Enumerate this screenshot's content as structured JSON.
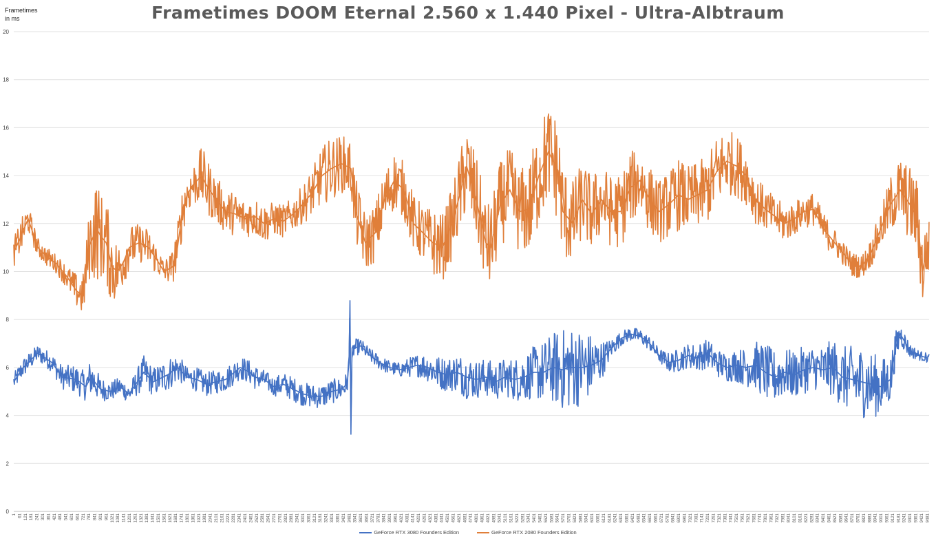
{
  "chart_data": {
    "type": "line",
    "title": "Frametimes DOOM Eternal 2.560 x 1.440 Pixel - Ultra-Albtraum",
    "ylabel_lines": [
      "Frametimes",
      "in ms"
    ],
    "xlabel": "",
    "ylim": [
      0,
      20
    ],
    "xlim": [
      1,
      9500
    ],
    "y_ticks": [
      0,
      2,
      4,
      6,
      8,
      10,
      12,
      14,
      16,
      18,
      20
    ],
    "x_ticks": [
      1,
      61,
      121,
      181,
      241,
      301,
      361,
      421,
      481,
      541,
      601,
      661,
      721,
      781,
      841,
      901,
      961,
      1021,
      1081,
      1141,
      1201,
      1261,
      1321,
      1381,
      1441,
      1501,
      1561,
      1621,
      1681,
      1741,
      1801,
      1861,
      1921,
      1981,
      2041,
      2101,
      2161,
      2221,
      2281,
      2341,
      2401,
      2461,
      2521,
      2581,
      2641,
      2701,
      2761,
      2821,
      2881,
      2941,
      3001,
      3061,
      3121,
      3181,
      3241,
      3301,
      3361,
      3421,
      3481,
      3541,
      3601,
      3661,
      3721,
      3781,
      3841,
      3901,
      3961,
      4021,
      4081,
      4141,
      4201,
      4261,
      4321,
      4381,
      4441,
      4501,
      4561,
      4621,
      4681,
      4741,
      4801,
      4861,
      4921,
      4981,
      5041,
      5101,
      5161,
      5221,
      5281,
      5341,
      5401,
      5461,
      5521,
      5581,
      5641,
      5701,
      5761,
      5821,
      5881,
      5941,
      6001,
      6061,
      6121,
      6181,
      6241,
      6301,
      6361,
      6421,
      6481,
      6541,
      6601,
      6661,
      6721,
      6781,
      6841,
      6901,
      6961,
      7021,
      7081,
      7141,
      7201,
      7261,
      7321,
      7381,
      7441,
      7501,
      7561,
      7621,
      7681,
      7741,
      7801,
      7861,
      7921,
      7981,
      8041,
      8101,
      8161,
      8221,
      8281,
      8341,
      8401,
      8461,
      8521,
      8581,
      8641,
      8701,
      8761,
      8821,
      8881,
      8941,
      9001,
      9061,
      9121,
      9181,
      9241,
      9301,
      9361,
      9421,
      9481
    ],
    "grid": true,
    "legend_position": "bottom",
    "series": [
      {
        "name": "GeForce RTX 3080 Founders Edition",
        "color": "#4472c4",
        "x": [
          1,
          100,
          250,
          400,
          500,
          650,
          750,
          800,
          900,
          1000,
          1100,
          1200,
          1350,
          1450,
          1600,
          1700,
          1800,
          1900,
          2000,
          2100,
          2200,
          2350,
          2450,
          2500,
          2600,
          2700,
          2800,
          2900,
          3000,
          3100,
          3200,
          3300,
          3400,
          3460,
          3480,
          3490,
          3500,
          3510,
          3530,
          3600,
          3700,
          3800,
          3900,
          4000,
          4100,
          4200,
          4300,
          4400,
          4500,
          4600,
          4700,
          4800,
          4900,
          5000,
          5100,
          5200,
          5300,
          5400,
          5500,
          5600,
          5700,
          5750,
          5800,
          5900,
          6000,
          6100,
          6200,
          6300,
          6400,
          6500,
          6600,
          6700,
          6800,
          6900,
          7000,
          7100,
          7200,
          7300,
          7400,
          7500,
          7600,
          7700,
          7800,
          7900,
          8000,
          8100,
          8200,
          8300,
          8400,
          8500,
          8600,
          8700,
          8800,
          8900,
          9000,
          9100,
          9150,
          9200,
          9300,
          9400,
          9480
        ],
        "values": [
          5.4,
          6.0,
          6.6,
          6.2,
          5.6,
          5.5,
          5.2,
          5.6,
          5.1,
          5.0,
          5.2,
          4.9,
          5.8,
          5.4,
          5.7,
          6.0,
          5.6,
          5.5,
          5.3,
          5.4,
          5.5,
          6.0,
          5.8,
          5.6,
          5.5,
          5.2,
          5.3,
          5.1,
          4.9,
          4.8,
          4.8,
          5.0,
          5.1,
          5.3,
          6.2,
          8.8,
          3.2,
          6.4,
          6.8,
          6.9,
          6.5,
          6.2,
          6.0,
          5.9,
          6.0,
          6.1,
          6.0,
          5.8,
          5.7,
          5.8,
          5.6,
          5.5,
          5.6,
          5.4,
          5.6,
          5.5,
          5.6,
          5.8,
          5.8,
          6.0,
          5.9,
          6.0,
          6.0,
          6.0,
          6.1,
          6.3,
          6.8,
          7.2,
          7.4,
          7.3,
          7.0,
          6.5,
          6.2,
          6.3,
          6.5,
          6.4,
          6.6,
          6.2,
          6.0,
          6.1,
          6.0,
          6.1,
          5.8,
          5.6,
          5.8,
          5.7,
          5.9,
          6.0,
          5.9,
          6.0,
          5.6,
          5.5,
          5.4,
          5.3,
          5.2,
          5.5,
          6.8,
          7.4,
          6.7,
          6.5,
          6.4
        ],
        "spread": [
          0.35,
          0.4,
          0.35,
          0.4,
          0.5,
          0.6,
          0.6,
          0.8,
          0.5,
          0.4,
          0.4,
          0.4,
          0.7,
          0.6,
          0.7,
          0.6,
          0.4,
          0.5,
          0.5,
          0.5,
          0.5,
          0.5,
          0.5,
          0.5,
          0.4,
          0.4,
          0.5,
          0.5,
          0.5,
          0.5,
          0.5,
          0.5,
          0.5,
          0.5,
          0.3,
          0.0,
          0.0,
          0.4,
          0.4,
          0.3,
          0.3,
          0.3,
          0.3,
          0.3,
          0.4,
          0.5,
          0.6,
          0.7,
          0.7,
          0.8,
          0.9,
          0.8,
          0.8,
          0.8,
          0.8,
          0.9,
          1.0,
          1.1,
          1.3,
          1.5,
          1.7,
          1.8,
          1.7,
          1.6,
          1.3,
          0.8,
          0.4,
          0.3,
          0.3,
          0.3,
          0.3,
          0.3,
          0.4,
          0.5,
          0.5,
          0.6,
          0.6,
          0.6,
          0.6,
          0.7,
          0.8,
          1.0,
          1.2,
          1.1,
          1.0,
          1.0,
          1.0,
          0.9,
          1.0,
          1.2,
          1.3,
          1.4,
          1.5,
          1.4,
          1.2,
          1.0,
          0.7,
          0.5,
          0.3,
          0.2,
          0.2
        ]
      },
      {
        "name": "GeForce RTX 2080 Founders Edition",
        "color": "#e07f3a",
        "x": [
          1,
          80,
          150,
          250,
          350,
          450,
          550,
          650,
          720,
          780,
          860,
          900,
          960,
          1020,
          1080,
          1140,
          1200,
          1300,
          1400,
          1500,
          1560,
          1650,
          1700,
          1750,
          1800,
          1860,
          1950,
          2000,
          2100,
          2200,
          2300,
          2400,
          2500,
          2600,
          2700,
          2800,
          2900,
          3000,
          3100,
          3200,
          3300,
          3400,
          3500,
          3550,
          3650,
          3750,
          3850,
          3950,
          4050,
          4150,
          4250,
          4350,
          4450,
          4550,
          4650,
          4700,
          4800,
          4900,
          4950,
          5050,
          5150,
          5250,
          5350,
          5450,
          5550,
          5650,
          5700,
          5800,
          5900,
          6000,
          6100,
          6200,
          6300,
          6400,
          6500,
          6600,
          6700,
          6800,
          6900,
          7000,
          7100,
          7200,
          7300,
          7400,
          7500,
          7600,
          7700,
          7800,
          7900,
          8000,
          8100,
          8200,
          8300,
          8400,
          8500,
          8600,
          8700,
          8800,
          8900,
          9000,
          9100,
          9200,
          9300,
          9380,
          9430,
          9480
        ],
        "values": [
          10.8,
          11.5,
          12.2,
          11.0,
          10.6,
          10.3,
          9.8,
          9.2,
          9.0,
          11.0,
          11.8,
          11.5,
          11.2,
          10.2,
          10.0,
          10.4,
          11.0,
          11.2,
          11.0,
          10.4,
          10.0,
          10.2,
          11.0,
          12.5,
          13.2,
          13.6,
          14.0,
          13.6,
          13.0,
          12.5,
          12.4,
          12.2,
          12.3,
          12.0,
          12.2,
          12.1,
          12.4,
          12.8,
          13.3,
          14.0,
          14.3,
          14.5,
          14.3,
          12.5,
          11.2,
          11.6,
          13.0,
          13.8,
          13.4,
          12.0,
          11.6,
          11.2,
          11.0,
          12.0,
          13.5,
          14.4,
          13.0,
          11.2,
          11.0,
          12.8,
          13.4,
          12.5,
          12.6,
          14.0,
          15.0,
          14.2,
          12.5,
          12.0,
          13.0,
          12.4,
          13.0,
          12.5,
          12.5,
          13.5,
          13.8,
          13.0,
          12.5,
          12.8,
          13.2,
          13.0,
          13.2,
          13.4,
          14.2,
          14.6,
          14.4,
          14.0,
          13.0,
          12.6,
          12.3,
          12.0,
          12.2,
          12.5,
          12.6,
          11.8,
          11.3,
          10.8,
          10.3,
          10.2,
          10.8,
          11.8,
          12.8,
          13.4,
          12.8,
          12.2,
          10.0,
          11.0
        ],
        "spread": [
          0.6,
          0.7,
          0.6,
          0.4,
          0.4,
          0.4,
          0.5,
          0.7,
          0.9,
          1.4,
          2.2,
          1.8,
          1.8,
          1.6,
          1.2,
          1.0,
          0.9,
          0.8,
          0.8,
          0.6,
          0.5,
          0.7,
          1.0,
          1.0,
          0.8,
          0.9,
          1.2,
          1.2,
          1.0,
          0.9,
          0.9,
          0.8,
          0.8,
          0.8,
          0.7,
          0.7,
          0.7,
          0.8,
          1.0,
          1.2,
          1.3,
          1.2,
          1.2,
          1.4,
          1.2,
          1.2,
          1.2,
          1.2,
          1.2,
          1.2,
          1.2,
          1.4,
          1.4,
          1.5,
          1.8,
          1.8,
          1.8,
          1.8,
          1.8,
          1.8,
          1.8,
          1.8,
          2.0,
          2.2,
          2.0,
          2.2,
          2.0,
          1.8,
          1.6,
          1.6,
          1.5,
          1.5,
          1.6,
          1.5,
          1.4,
          1.4,
          1.3,
          1.4,
          1.5,
          1.4,
          1.4,
          1.4,
          1.5,
          1.4,
          1.3,
          1.2,
          1.0,
          0.9,
          0.8,
          0.8,
          0.7,
          0.7,
          0.7,
          0.7,
          0.6,
          0.5,
          0.5,
          0.5,
          0.6,
          0.8,
          1.2,
          1.4,
          1.6,
          1.6,
          1.6,
          1.2
        ]
      }
    ]
  }
}
